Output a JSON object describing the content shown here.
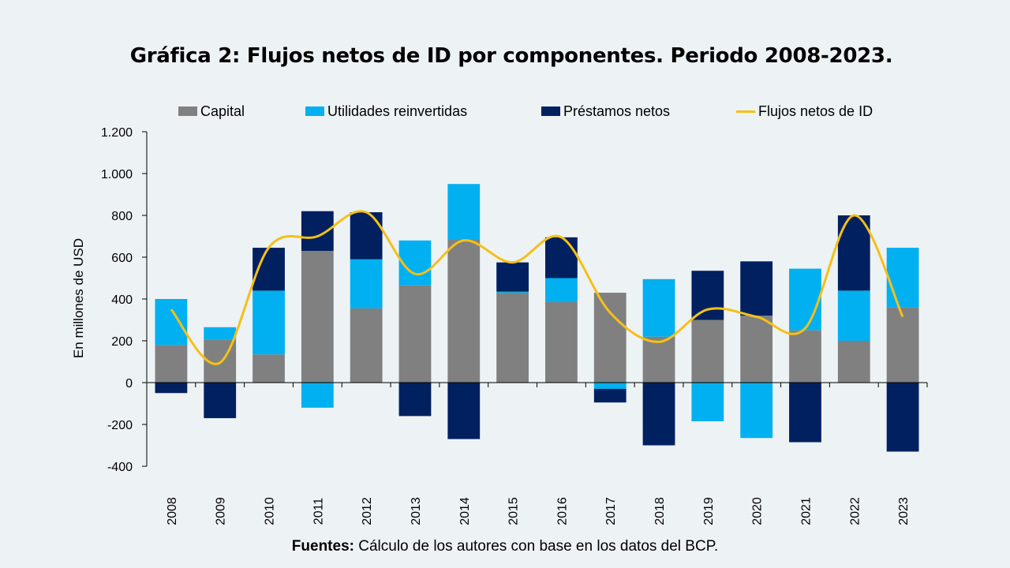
{
  "title": "Gráfica 2: Flujos netos de ID por componentes. Periodo 2008-2023.",
  "footer": {
    "bold": "Fuentes:",
    "text": " Cálculo de los autores con base en los datos del BCP."
  },
  "colors": {
    "capital": "#808080",
    "utilidades": "#00b0f0",
    "prestamos": "#002060",
    "flujos": "#f5c018",
    "background": "#edf2f5"
  },
  "chart_data": {
    "type": "bar",
    "stacked": true,
    "categories": [
      "2008",
      "2009",
      "2010",
      "2011",
      "2012",
      "2013",
      "2014",
      "2015",
      "2016",
      "2017",
      "2018",
      "2019",
      "2020",
      "2021",
      "2022",
      "2023"
    ],
    "ylabel": "En millones de USD",
    "ylim": [
      -400,
      1200
    ],
    "yticks": [
      -400,
      -200,
      0,
      200,
      400,
      600,
      800,
      1000,
      1200
    ],
    "ytick_labels": [
      "-400",
      "-200",
      "0",
      "200",
      "400",
      "600",
      "800",
      "1.000",
      "1.200"
    ],
    "legend_position": "top",
    "series": [
      {
        "name": "Capital",
        "key": "capital",
        "kind": "bar",
        "values": [
          180,
          205,
          135,
          630,
          355,
          465,
          685,
          430,
          385,
          430,
          220,
          300,
          320,
          250,
          200,
          360
        ]
      },
      {
        "name": "Utilidades reinvertidas",
        "key": "utilidades",
        "kind": "bar",
        "values": [
          220,
          60,
          305,
          -120,
          235,
          215,
          265,
          5,
          115,
          -30,
          275,
          -185,
          -265,
          295,
          240,
          285
        ]
      },
      {
        "name": "Préstamos netos",
        "key": "prestamos",
        "kind": "bar",
        "values": [
          -50,
          -170,
          205,
          190,
          225,
          -160,
          -270,
          140,
          195,
          -65,
          -300,
          235,
          260,
          -285,
          360,
          -330
        ]
      },
      {
        "name": "Flujos netos de ID",
        "key": "flujos",
        "kind": "line",
        "values": [
          350,
          95,
          645,
          700,
          815,
          520,
          680,
          575,
          695,
          335,
          195,
          350,
          315,
          260,
          800,
          315
        ]
      }
    ]
  }
}
